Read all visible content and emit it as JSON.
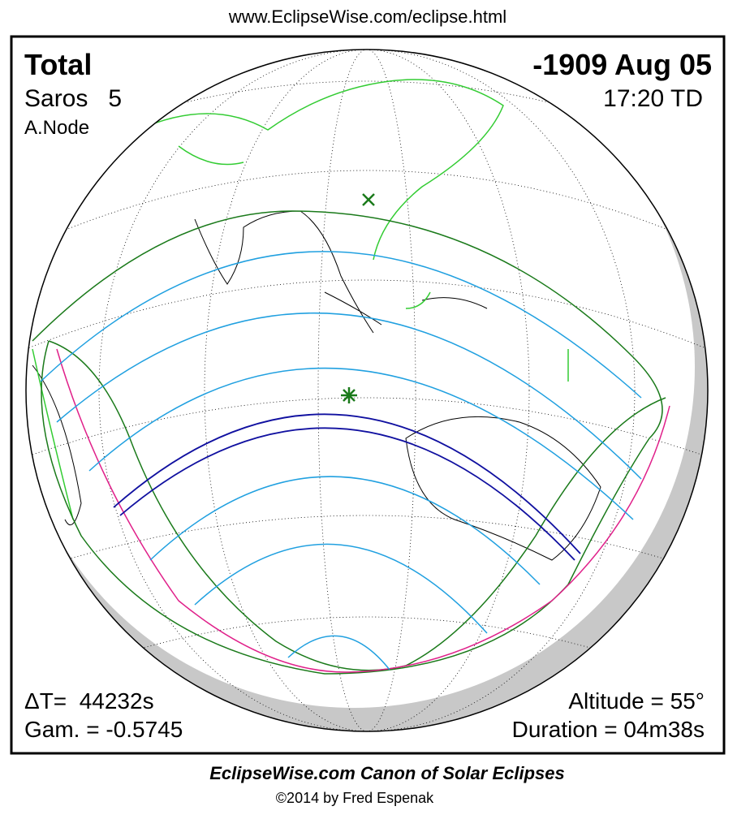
{
  "header": {
    "url": "www.EclipseWise.com/eclipse.html"
  },
  "panel": {
    "type": "Total",
    "date": "-1909 Aug 05",
    "saros": "Saros   5",
    "time": "17:20 TD",
    "node": "A.Node",
    "delta_t": "ΔT=  44232s",
    "gamma": "Gam. = -0.5745",
    "altitude": "Altitude = 55°",
    "duration": "Duration = 04m38s"
  },
  "footer": {
    "title": "EclipseWise.com Canon of Solar Eclipses",
    "copyright": "©2014 by Fred Espenak"
  }
}
